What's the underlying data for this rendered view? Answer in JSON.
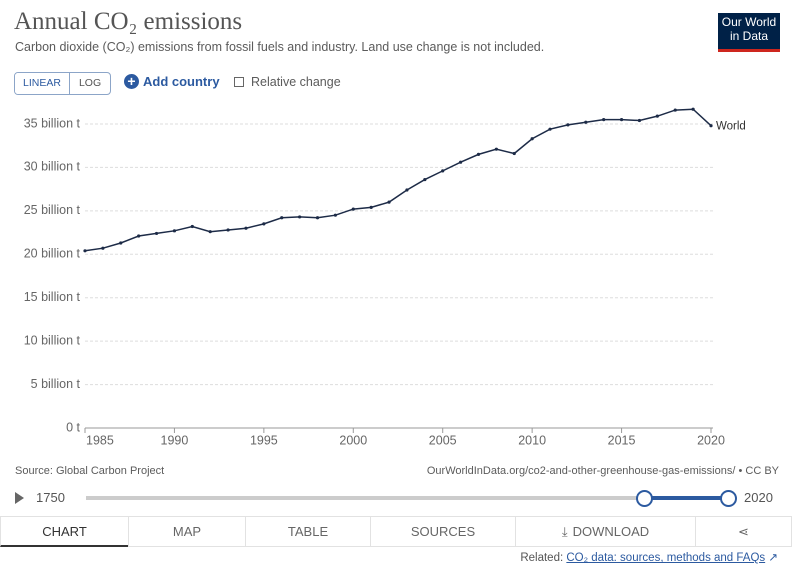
{
  "header": {
    "title": "Annual CO₂ emissions",
    "subtitle": "Carbon dioxide (CO₂) emissions from fossil fuels and industry. Land use change is not included.",
    "logo": [
      "Our World",
      "in Data"
    ]
  },
  "controls": {
    "scale_buttons": [
      "LINEAR",
      "LOG"
    ],
    "add": "Add country",
    "relative": "Relative change"
  },
  "chart_data": {
    "type": "line",
    "x": [
      1985,
      1986,
      1987,
      1988,
      1989,
      1990,
      1991,
      1992,
      1993,
      1994,
      1995,
      1996,
      1997,
      1998,
      1999,
      2000,
      2001,
      2002,
      2003,
      2004,
      2005,
      2006,
      2007,
      2008,
      2009,
      2010,
      2011,
      2012,
      2013,
      2014,
      2015,
      2016,
      2017,
      2018,
      2019,
      2020
    ],
    "series": [
      {
        "name": "World",
        "color": "#1d2b47",
        "values": [
          20.4,
          20.7,
          21.3,
          22.1,
          22.4,
          22.7,
          23.2,
          22.6,
          22.8,
          23.0,
          23.5,
          24.2,
          24.3,
          24.2,
          24.5,
          25.2,
          25.4,
          26.0,
          27.4,
          28.6,
          29.6,
          30.6,
          31.5,
          32.1,
          31.6,
          33.3,
          34.4,
          34.9,
          35.2,
          35.5,
          35.5,
          35.4,
          35.9,
          36.6,
          36.7,
          34.8
        ]
      }
    ],
    "xlim": [
      1985,
      2020
    ],
    "xticks": [
      1985,
      1990,
      1995,
      2000,
      2005,
      2010,
      2015,
      2020
    ],
    "ylim": [
      0,
      37
    ],
    "yticks": [
      {
        "value": 0,
        "label": "0 t"
      },
      {
        "value": 5,
        "label": "5 billion t"
      },
      {
        "value": 10,
        "label": "10 billion t"
      },
      {
        "value": 15,
        "label": "15 billion t"
      },
      {
        "value": 20,
        "label": "20 billion t"
      },
      {
        "value": 25,
        "label": "25 billion t"
      },
      {
        "value": 30,
        "label": "30 billion t"
      },
      {
        "value": 35,
        "label": "35 billion t"
      }
    ],
    "grid": true
  },
  "footer": {
    "source": "Source: Global Carbon Project",
    "url": "OurWorldInData.org/co2-and-other-greenhouse-gas-emissions/ • CC BY"
  },
  "timeline": {
    "start": 1750,
    "end": 2020
  },
  "tabs": [
    "CHART",
    "MAP",
    "TABLE",
    "SOURCES",
    "DOWNLOAD"
  ],
  "related": {
    "prefix": "Related:",
    "link": "CO₂ data: sources, methods and FAQs"
  }
}
